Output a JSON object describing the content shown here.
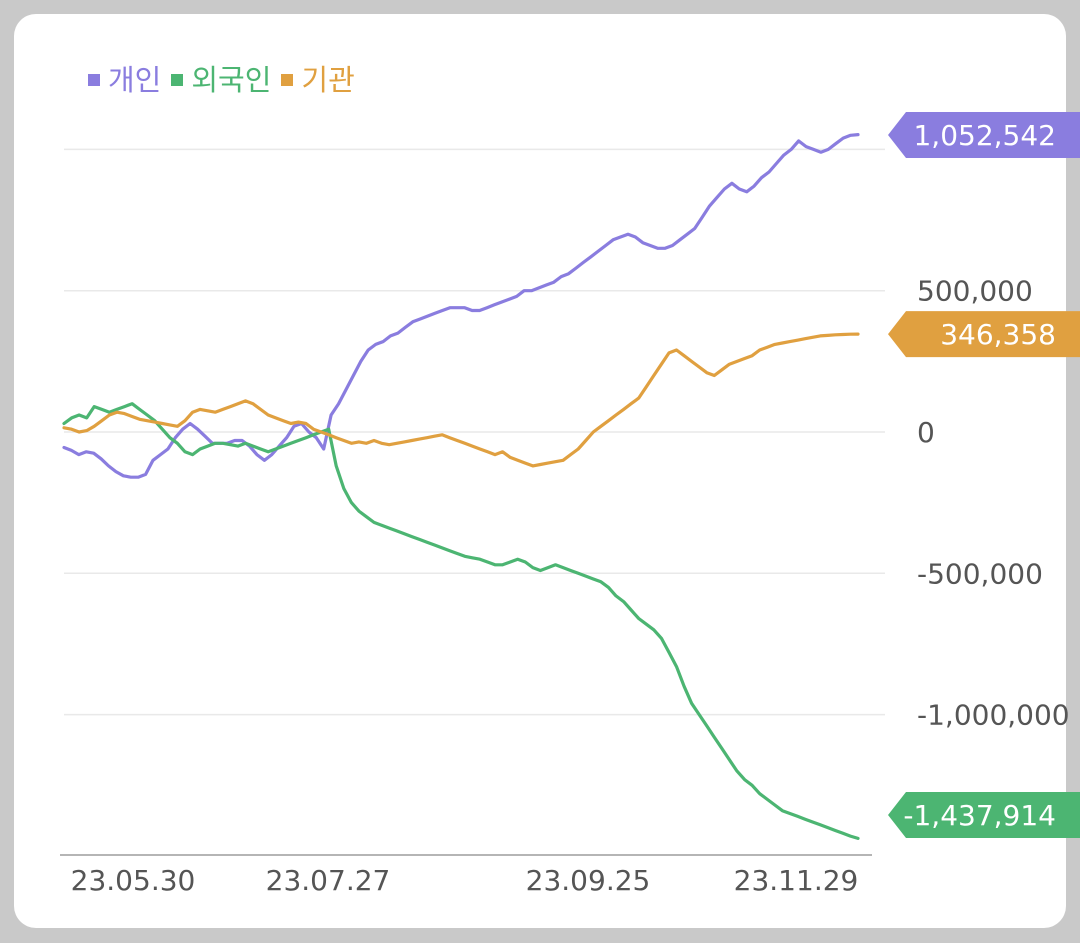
{
  "chart_data": {
    "type": "line",
    "legend": [
      {
        "name": "개인",
        "color": "#8a7ddf"
      },
      {
        "name": "외국인",
        "color": "#4cb572"
      },
      {
        "name": "기관",
        "color": "#e0a040"
      }
    ],
    "x_ticks": [
      "23.05.30",
      "23.07.27",
      "23.09.25",
      "23.11.29"
    ],
    "y_ticks": [
      "500,000",
      "0",
      "-500,000",
      "-1,000,000"
    ],
    "y_tick_values": [
      500000,
      0,
      -500000,
      -1000000
    ],
    "ylim": [
      -1440000,
      1060000
    ],
    "grid": true,
    "legend_position": "top-left",
    "series": [
      {
        "name": "개인",
        "color": "#8a7ddf",
        "last_label": "1,052,542",
        "values": [
          -55000,
          -65000,
          -80000,
          -70000,
          -75000,
          -95000,
          -120000,
          -140000,
          -155000,
          -160000,
          -160000,
          -150000,
          -100000,
          -80000,
          -60000,
          -20000,
          10000,
          30000,
          10000,
          -15000,
          -40000,
          -40000,
          -40000,
          -30000,
          -30000,
          -50000,
          -80000,
          -100000,
          -80000,
          -50000,
          -20000,
          20000,
          30000,
          0,
          -20000,
          -60000,
          60000,
          100000,
          150000,
          200000,
          250000,
          290000,
          310000,
          320000,
          340000,
          350000,
          370000,
          390000,
          400000,
          410000,
          420000,
          430000,
          440000,
          440000,
          440000,
          430000,
          430000,
          440000,
          450000,
          460000,
          470000,
          480000,
          500000,
          500000,
          510000,
          520000,
          530000,
          550000,
          560000,
          580000,
          600000,
          620000,
          640000,
          660000,
          680000,
          690000,
          700000,
          690000,
          670000,
          660000,
          650000,
          650000,
          660000,
          680000,
          700000,
          720000,
          760000,
          800000,
          830000,
          860000,
          880000,
          860000,
          850000,
          870000,
          900000,
          920000,
          950000,
          980000,
          1000000,
          1030000,
          1010000,
          1000000,
          990000,
          1000000,
          1020000,
          1040000,
          1050000,
          1052542
        ]
      },
      {
        "name": "외국인",
        "color": "#4cb572",
        "last_label": "-1,437,914",
        "values": [
          30000,
          50000,
          60000,
          50000,
          90000,
          80000,
          70000,
          80000,
          90000,
          100000,
          80000,
          60000,
          40000,
          10000,
          -20000,
          -40000,
          -70000,
          -80000,
          -60000,
          -50000,
          -40000,
          -40000,
          -45000,
          -50000,
          -40000,
          -50000,
          -60000,
          -70000,
          -60000,
          -50000,
          -40000,
          -30000,
          -20000,
          -10000,
          0,
          10000,
          -120000,
          -200000,
          -250000,
          -280000,
          -300000,
          -320000,
          -330000,
          -340000,
          -350000,
          -360000,
          -370000,
          -380000,
          -390000,
          -400000,
          -410000,
          -420000,
          -430000,
          -440000,
          -445000,
          -450000,
          -460000,
          -470000,
          -470000,
          -460000,
          -450000,
          -460000,
          -480000,
          -490000,
          -480000,
          -470000,
          -480000,
          -490000,
          -500000,
          -510000,
          -520000,
          -530000,
          -550000,
          -580000,
          -600000,
          -630000,
          -660000,
          -680000,
          -700000,
          -730000,
          -780000,
          -830000,
          -900000,
          -960000,
          -1000000,
          -1040000,
          -1080000,
          -1120000,
          -1160000,
          -1200000,
          -1230000,
          -1250000,
          -1280000,
          -1300000,
          -1320000,
          -1340000,
          -1350000,
          -1360000,
          -1370000,
          -1380000,
          -1390000,
          -1400000,
          -1410000,
          -1420000,
          -1430000,
          -1437914
        ]
      },
      {
        "name": "기관",
        "color": "#e0a040",
        "last_label": "346,358",
        "values": [
          15000,
          10000,
          0,
          5000,
          20000,
          40000,
          60000,
          70000,
          65000,
          55000,
          45000,
          40000,
          35000,
          30000,
          25000,
          20000,
          40000,
          70000,
          80000,
          75000,
          70000,
          80000,
          90000,
          100000,
          110000,
          100000,
          80000,
          60000,
          50000,
          40000,
          30000,
          35000,
          30000,
          10000,
          0,
          -10000,
          -20000,
          -30000,
          -40000,
          -35000,
          -40000,
          -30000,
          -40000,
          -45000,
          -40000,
          -35000,
          -30000,
          -25000,
          -20000,
          -15000,
          -10000,
          -20000,
          -30000,
          -40000,
          -50000,
          -60000,
          -70000,
          -80000,
          -70000,
          -90000,
          -100000,
          -110000,
          -120000,
          -115000,
          -110000,
          -105000,
          -100000,
          -80000,
          -60000,
          -30000,
          0,
          20000,
          40000,
          60000,
          80000,
          100000,
          120000,
          160000,
          200000,
          240000,
          280000,
          290000,
          270000,
          250000,
          230000,
          210000,
          200000,
          220000,
          240000,
          250000,
          260000,
          270000,
          290000,
          300000,
          310000,
          315000,
          320000,
          325000,
          330000,
          335000,
          340000,
          342000,
          344000,
          345000,
          346000,
          346358
        ]
      }
    ]
  }
}
